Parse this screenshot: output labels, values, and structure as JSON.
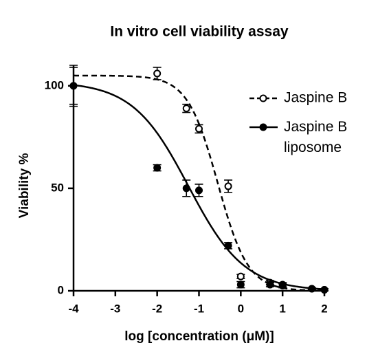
{
  "chart_data": {
    "type": "dose_response",
    "title": "In vitro cell viability assay",
    "x_label": "log [concentration (μM)]",
    "y_label": "Viability %",
    "xlim": [
      -4,
      2
    ],
    "xticks": [
      -4,
      -3,
      -2,
      -1,
      0,
      1,
      2
    ],
    "ylim": [
      0,
      110
    ],
    "yticks": [
      0,
      50,
      100
    ],
    "legend": "upper right",
    "series": [
      {
        "name": "Jaspine B",
        "color": "#000000",
        "marker": "open",
        "line": "dashed",
        "x": [
          -4,
          -2,
          -1.3,
          -1,
          -0.3,
          0,
          0.7,
          1,
          1.7,
          2
        ],
        "values": [
          100,
          106,
          89,
          79,
          51,
          7,
          4,
          3,
          1,
          0.5
        ],
        "errors": [
          10,
          3,
          2,
          2,
          3,
          1,
          1,
          1,
          0.5,
          0.5
        ],
        "fit": {
          "top": 105,
          "bottom": 0,
          "log_ic50": -0.55,
          "hill": 1.2
        }
      },
      {
        "name": "Jaspine B liposome",
        "color": "#000000",
        "marker": "filled",
        "line": "solid",
        "x": [
          -4,
          -2,
          -1.3,
          -1,
          -0.3,
          0,
          0.7,
          1,
          1.7,
          2
        ],
        "values": [
          100,
          60,
          50,
          49,
          22,
          3,
          3,
          2.5,
          1,
          0.5
        ],
        "errors": [
          9,
          1.5,
          4,
          3,
          1.5,
          1.5,
          1,
          1,
          0.5,
          0.5
        ],
        "fit": {
          "top": 102,
          "bottom": 0,
          "log_ic50": -1.25,
          "hill": 0.65
        }
      }
    ]
  }
}
